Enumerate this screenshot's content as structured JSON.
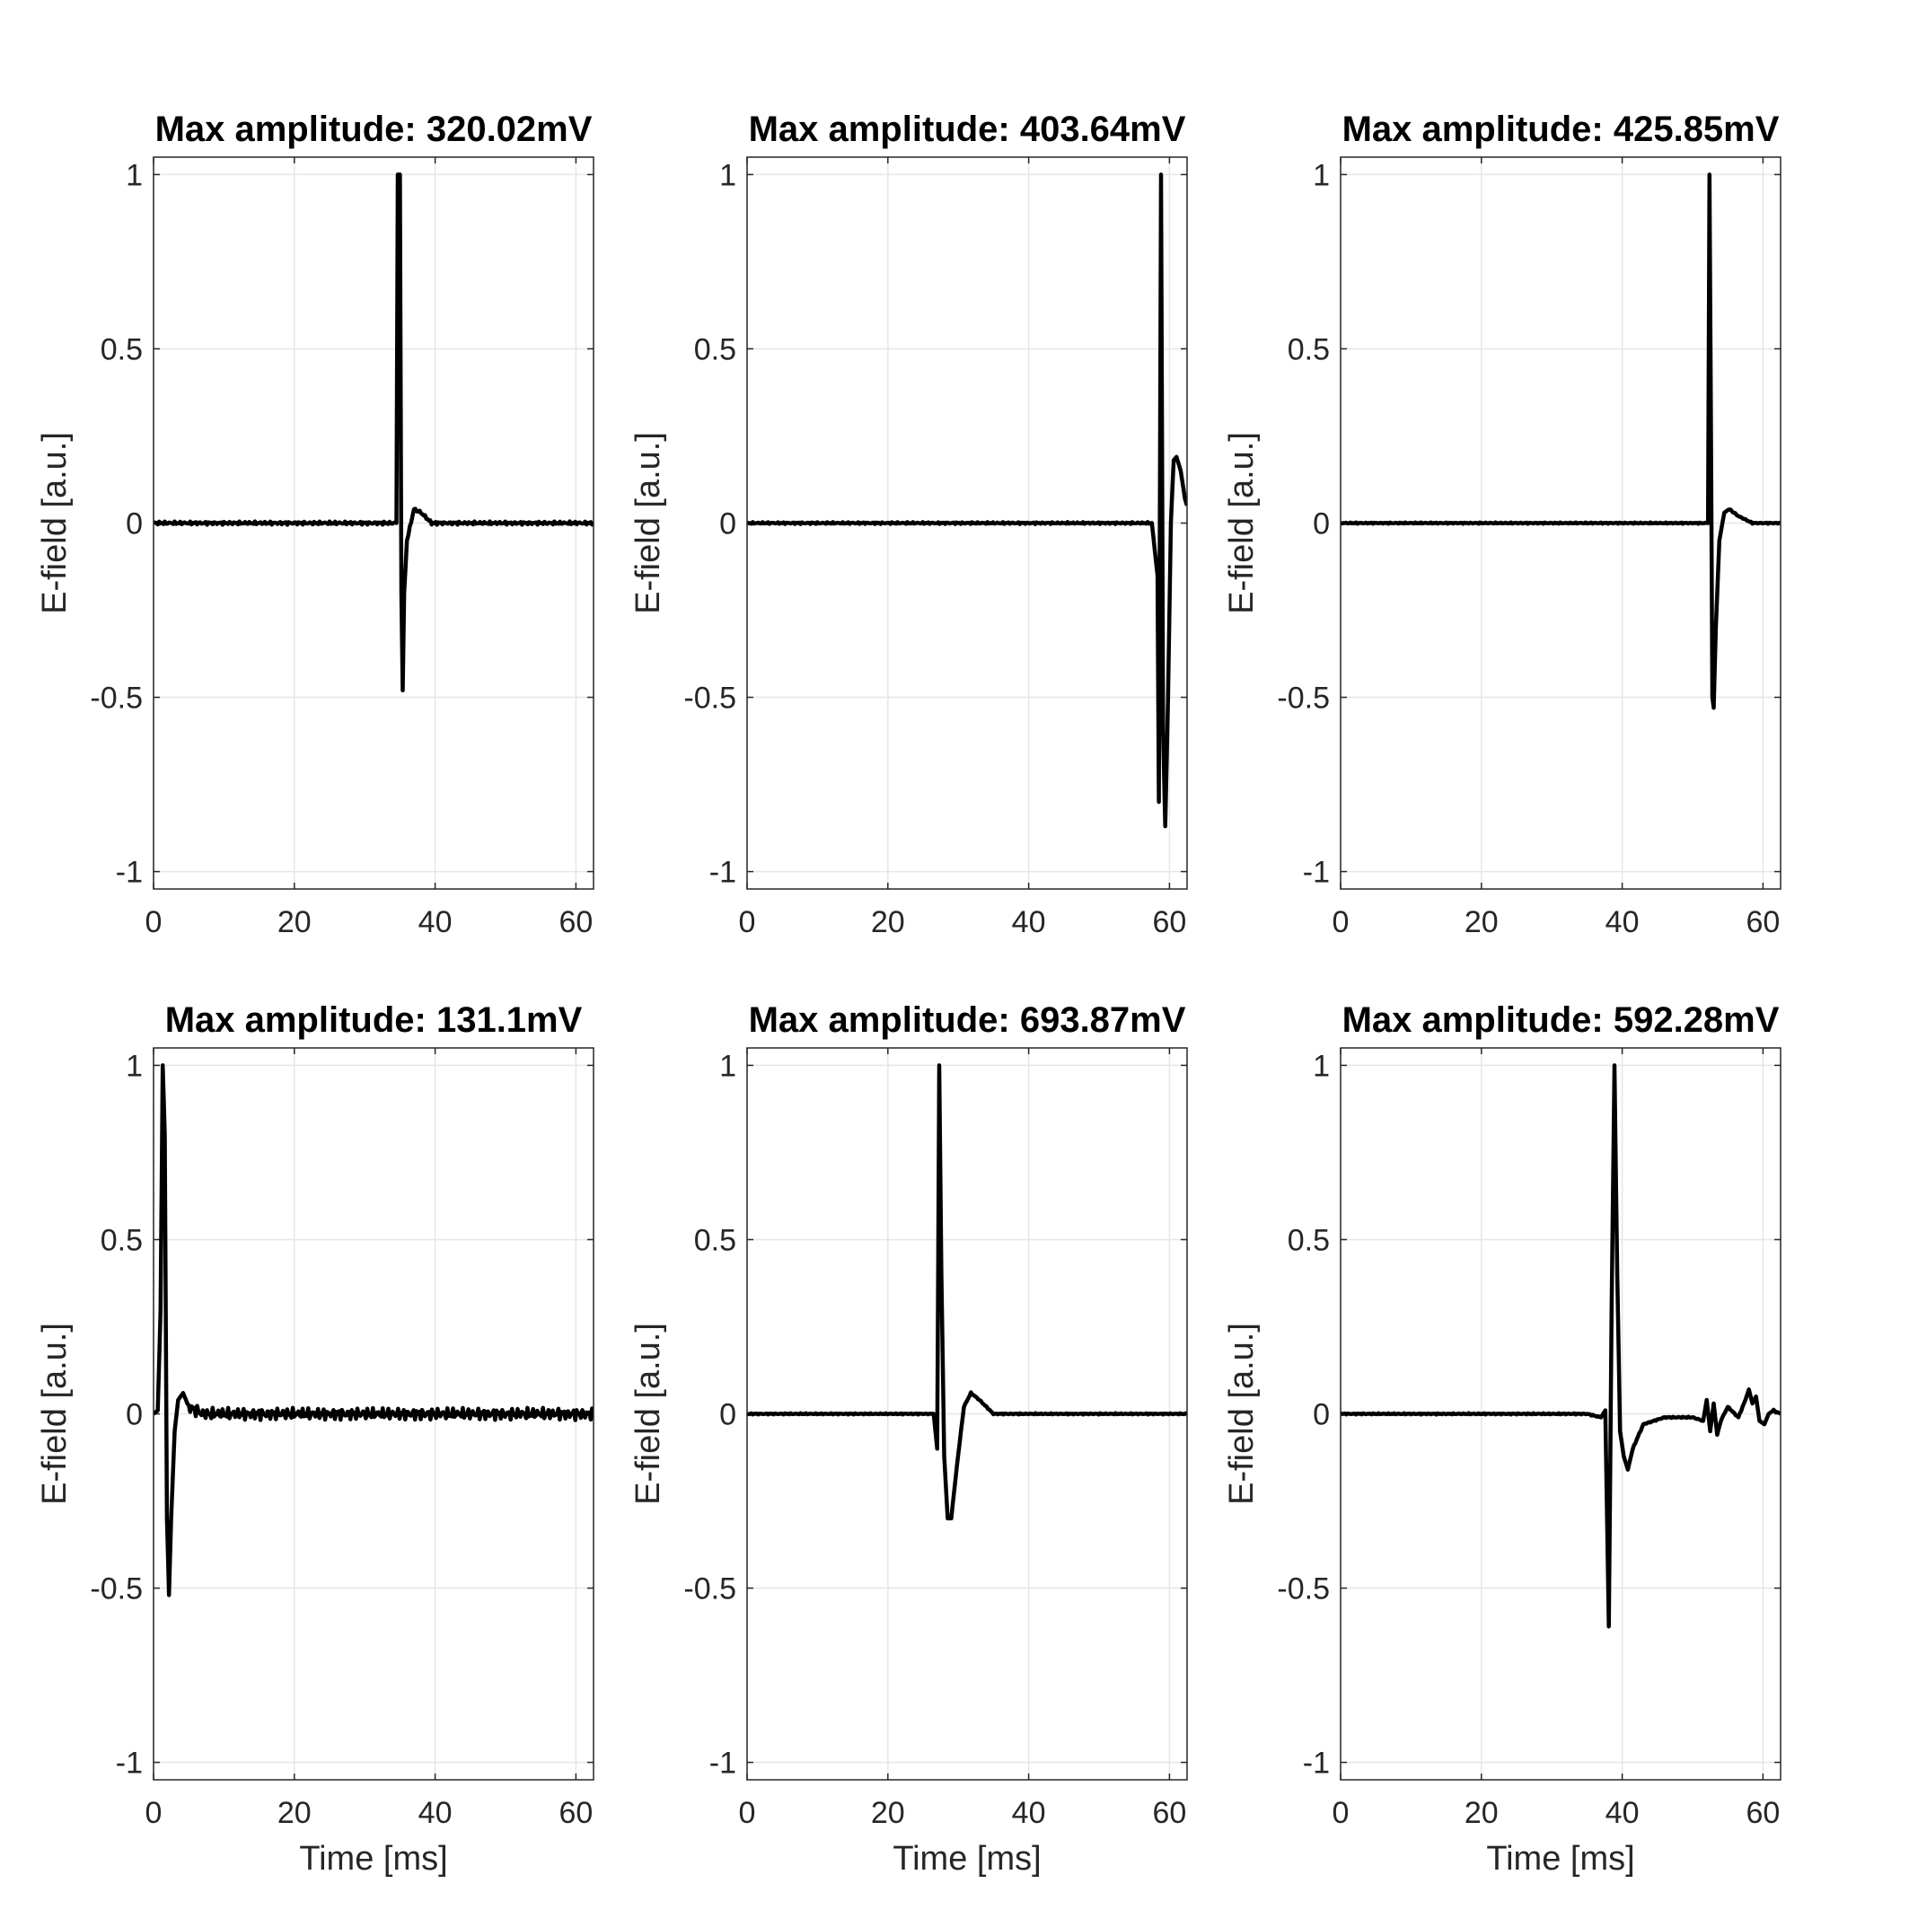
{
  "chart_data": [
    {
      "type": "line",
      "title": "Max amplitude: 320.02mV",
      "xlabel": "",
      "ylabel": "E-field [a.u.]",
      "xlim": [
        0,
        62.5
      ],
      "ylim": [
        -1.05,
        1.05
      ],
      "xticks": [
        "0",
        "20",
        "40",
        "60"
      ],
      "yticks": [
        "-1",
        "-0.5",
        "0",
        "0.5",
        "1"
      ],
      "grid": true,
      "noise": 0.005,
      "series": [
        {
          "x": [
            0,
            30,
            34.5,
            34.7,
            35.0,
            35.2,
            35.4,
            35.6,
            36.0,
            37.0,
            38.0,
            39.5,
            42,
            62.5
          ],
          "y": [
            0,
            0,
            0,
            1.0,
            1.0,
            -0.2,
            -0.48,
            -0.2,
            -0.05,
            0.04,
            0.03,
            0,
            0,
            0
          ]
        }
      ]
    },
    {
      "type": "line",
      "title": "Max amplitude: 403.64mV",
      "xlabel": "",
      "ylabel": "E-field [a.u.]",
      "xlim": [
        0,
        62.5
      ],
      "ylim": [
        -1.05,
        1.05
      ],
      "xticks": [
        "0",
        "20",
        "40",
        "60"
      ],
      "yticks": [
        "-1",
        "-0.5",
        "0",
        "0.5",
        "1"
      ],
      "grid": true,
      "noise": 0.003,
      "series": [
        {
          "x": [
            0,
            57.5,
            58.3,
            58.5,
            58.8,
            59.1,
            59.4,
            59.8,
            60.2,
            60.6,
            61.0,
            61.6,
            62.2,
            62.5
          ],
          "y": [
            0,
            0,
            -0.15,
            -0.8,
            1.0,
            -0.6,
            -0.87,
            -0.5,
            0,
            0.18,
            0.19,
            0.15,
            0.07,
            0.05
          ]
        }
      ]
    },
    {
      "type": "line",
      "title": "Max amplitude: 425.85mV",
      "xlabel": "",
      "ylabel": "E-field [a.u.]",
      "xlim": [
        0,
        62.5
      ],
      "ylim": [
        -1.05,
        1.05
      ],
      "xticks": [
        "0",
        "20",
        "40",
        "60"
      ],
      "yticks": [
        "-1",
        "-0.5",
        "0",
        "0.5",
        "1"
      ],
      "grid": true,
      "noise": 0.002,
      "series": [
        {
          "x": [
            0,
            50,
            52.2,
            52.4,
            52.6,
            52.8,
            53.0,
            53.3,
            53.8,
            54.5,
            55.2,
            56.5,
            58.5,
            62.5
          ],
          "y": [
            0,
            0,
            0,
            1.0,
            0.3,
            -0.5,
            -0.53,
            -0.3,
            -0.05,
            0.03,
            0.04,
            0.02,
            0,
            0
          ]
        }
      ]
    },
    {
      "type": "line",
      "title": "Max amplitude: 131.1mV",
      "xlabel": "Time [ms]",
      "ylabel": "E-field [a.u.]",
      "xlim": [
        0,
        62.5
      ],
      "ylim": [
        -1.05,
        1.05
      ],
      "xticks": [
        "0",
        "20",
        "40",
        "60"
      ],
      "yticks": [
        "-1",
        "-0.5",
        "0",
        "0.5",
        "1"
      ],
      "grid": true,
      "noise": 0.018,
      "series": [
        {
          "x": [
            0,
            0.6,
            1.0,
            1.3,
            1.6,
            1.9,
            2.2,
            2.5,
            3.0,
            3.5,
            4.2,
            5.0,
            7,
            62.5
          ],
          "y": [
            0,
            0.01,
            0.3,
            1.0,
            0.8,
            -0.3,
            -0.52,
            -0.3,
            -0.05,
            0.04,
            0.06,
            0.02,
            0,
            0
          ]
        }
      ]
    },
    {
      "type": "line",
      "title": "Max amplitude: 693.87mV",
      "xlabel": "Time [ms]",
      "ylabel": "E-field [a.u.]",
      "xlim": [
        0,
        62.5
      ],
      "ylim": [
        -1.05,
        1.05
      ],
      "xticks": [
        "0",
        "20",
        "40",
        "60"
      ],
      "yticks": [
        "-1",
        "-0.5",
        "0",
        "0.5",
        "1"
      ],
      "grid": true,
      "noise": 0.002,
      "series": [
        {
          "x": [
            0,
            26.5,
            27.0,
            27.3,
            27.6,
            28.0,
            28.5,
            29.0,
            29.8,
            30.8,
            31.8,
            33.0,
            35.0,
            62.5
          ],
          "y": [
            0,
            0,
            -0.1,
            1.0,
            0.4,
            -0.12,
            -0.3,
            -0.3,
            -0.15,
            0.02,
            0.06,
            0.04,
            0,
            0
          ]
        }
      ]
    },
    {
      "type": "line",
      "title": "Max amplitude: 592.28mV",
      "xlabel": "Time [ms]",
      "ylabel": "E-field [a.u.]",
      "xlim": [
        0,
        62.5
      ],
      "ylim": [
        -1.05,
        1.05
      ],
      "xticks": [
        "0",
        "20",
        "40",
        "60"
      ],
      "yticks": [
        "-1",
        "-0.5",
        "0",
        "0.5",
        "1"
      ],
      "grid": true,
      "noise": 0.002,
      "series": [
        {
          "x": [
            0,
            35,
            37.0,
            37.6,
            38.1,
            38.5,
            38.9,
            39.3,
            39.7,
            40.2,
            40.8,
            41.5,
            43,
            46,
            50,
            51.5,
            52.0,
            52.5,
            53.0,
            53.5,
            54.0,
            55.0,
            56.5,
            57.5,
            58.0,
            58.5,
            59.0,
            59.5,
            60.2,
            60.8,
            61.5,
            62.5
          ],
          "y": [
            0,
            0,
            -0.01,
            0.01,
            -0.61,
            0.3,
            1.0,
            0.4,
            -0.05,
            -0.12,
            -0.16,
            -0.1,
            -0.03,
            -0.01,
            -0.01,
            -0.02,
            0.04,
            -0.05,
            0.03,
            -0.06,
            -0.02,
            0.02,
            -0.01,
            0.04,
            0.07,
            0.03,
            0.05,
            -0.02,
            -0.03,
            0,
            0.01,
            0
          ]
        }
      ]
    }
  ]
}
